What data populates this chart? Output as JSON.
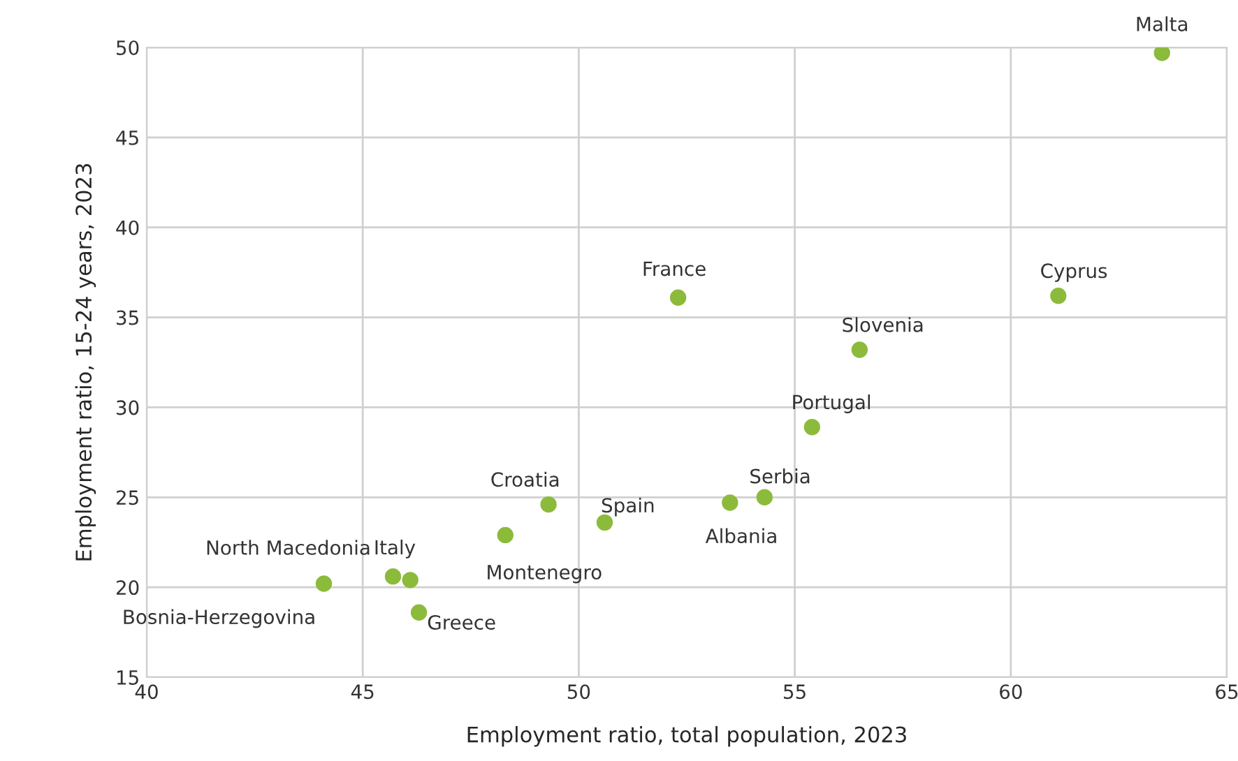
{
  "chart_data": {
    "type": "scatter",
    "xlabel": "Employment ratio, total population, 2023",
    "ylabel": "Employment ratio, 15-24 years, 2023",
    "x": [
      63.5,
      61.1,
      52.3,
      56.5,
      55.4,
      54.3,
      53.5,
      49.3,
      50.6,
      48.3,
      44.1,
      45.7,
      46.1,
      46.3
    ],
    "series": [
      {
        "color": "#8cbb3c",
        "values": [
          49.7,
          36.2,
          36.1,
          33.2,
          28.9,
          25.0,
          24.7,
          24.6,
          23.6,
          22.9,
          20.2,
          20.6,
          20.4,
          18.6
        ]
      }
    ],
    "annotations": [
      {
        "text": "Malta",
        "x": 63.5,
        "y": 49.7
      },
      {
        "text": "Cyprus",
        "x": 61.1,
        "y": 36.2
      },
      {
        "text": "France",
        "x": 52.3,
        "y": 36.1
      },
      {
        "text": "Slovenia",
        "x": 56.5,
        "y": 33.2
      },
      {
        "text": "Portugal",
        "x": 55.4,
        "y": 28.9
      },
      {
        "text": "Serbia",
        "x": 54.3,
        "y": 25.0
      },
      {
        "text": "Albania",
        "x": 53.5,
        "y": 24.7
      },
      {
        "text": "Croatia",
        "x": 49.3,
        "y": 24.6
      },
      {
        "text": "Spain",
        "x": 50.6,
        "y": 23.6
      },
      {
        "text": "Montenegro",
        "x": 48.3,
        "y": 22.9
      },
      {
        "text": "Bosnia-Herzegovina",
        "x": 44.1,
        "y": 20.2
      },
      {
        "text": "North Macedonia",
        "x": 45.7,
        "y": 20.6
      },
      {
        "text": "Italy",
        "x": 46.1,
        "y": 20.4
      },
      {
        "text": "Greece",
        "x": 46.3,
        "y": 18.6
      }
    ],
    "xlim": [
      40,
      65
    ],
    "xticks": [
      40,
      45,
      50,
      55,
      60,
      65
    ],
    "ylim": [
      15,
      50
    ],
    "yticks": [
      15,
      20,
      25,
      30,
      35,
      40,
      45,
      50
    ],
    "grid": true,
    "legend": false,
    "marker": "circle"
  }
}
